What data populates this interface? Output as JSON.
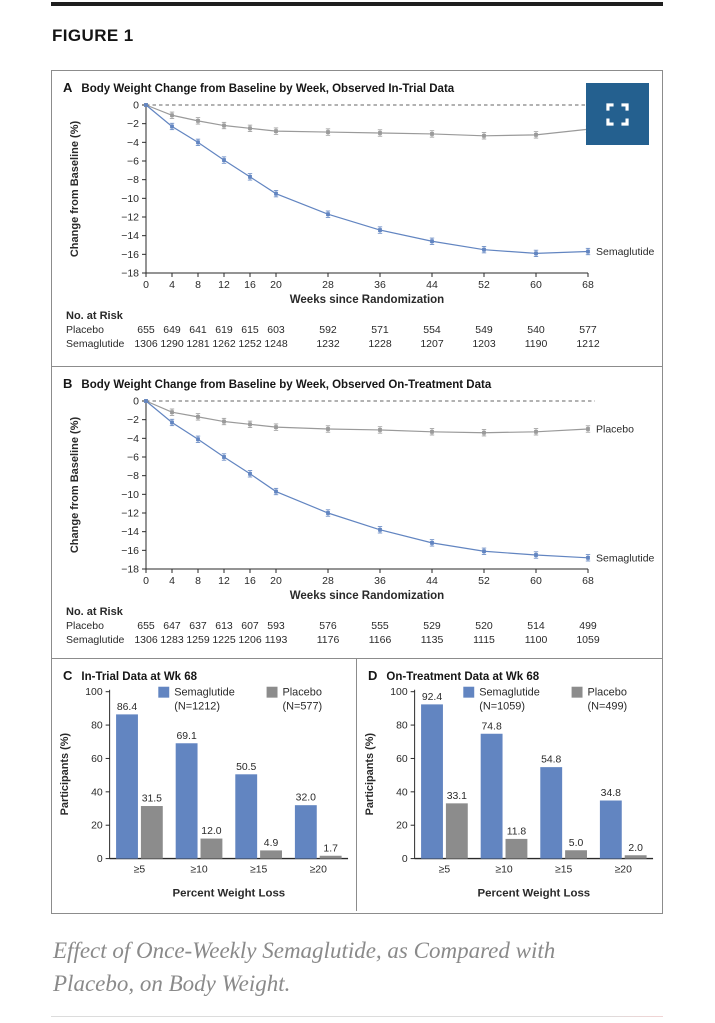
{
  "figure": {
    "label": "FIGURE 1"
  },
  "caption": "Effect of Once-Weekly Semaglutide, as Compared with Placebo, on Body Weight.",
  "expand_button": {
    "icon": "expand-icon"
  },
  "colors": {
    "semaglutide_blue": "#6285c1",
    "placebo_line_gray": "#9a9a9a",
    "placebo_bar_gray": "#8c8c8c",
    "expand_button_bg": "#24608f",
    "top_rule": "#1e1e1e",
    "panel_border": "#8c8c8c"
  },
  "chart_data": [
    {
      "id": "A",
      "type": "line",
      "panel_label": "A",
      "title": "Body Weight Change from Baseline by Week, Observed In-Trial Data",
      "xlabel": "Weeks since Randomization",
      "ylabel": "Change from Baseline (%)",
      "x": [
        0,
        4,
        8,
        12,
        16,
        20,
        28,
        36,
        44,
        52,
        60,
        68
      ],
      "xlim": [
        0,
        68
      ],
      "ylim": [
        -18,
        0
      ],
      "ytick_step": 2,
      "zero_line_dashed": true,
      "series": [
        {
          "name": "Placebo",
          "color": "#9a9a9a",
          "values": [
            0,
            -1.1,
            -1.7,
            -2.2,
            -2.5,
            -2.8,
            -2.9,
            -3.0,
            -3.1,
            -3.3,
            -3.2,
            -2.6
          ],
          "end_label": ""
        },
        {
          "name": "Semaglutide",
          "color": "#6285c1",
          "values": [
            0,
            -2.3,
            -4.0,
            -5.9,
            -7.7,
            -9.5,
            -11.7,
            -13.4,
            -14.6,
            -15.5,
            -15.9,
            -15.7
          ],
          "end_label": "Semaglutide"
        }
      ],
      "no_at_risk": {
        "header": "No. at Risk",
        "rows": [
          {
            "label": "Placebo",
            "values": [
              655,
              649,
              641,
              619,
              615,
              603,
              592,
              571,
              554,
              549,
              540,
              577
            ]
          },
          {
            "label": "Semaglutide",
            "values": [
              1306,
              1290,
              1281,
              1262,
              1252,
              1248,
              1232,
              1228,
              1207,
              1203,
              1190,
              1212
            ]
          }
        ]
      }
    },
    {
      "id": "B",
      "type": "line",
      "panel_label": "B",
      "title": "Body Weight Change from Baseline by Week, Observed On-Treatment Data",
      "xlabel": "Weeks since Randomization",
      "ylabel": "Change from Baseline (%)",
      "x": [
        0,
        4,
        8,
        12,
        16,
        20,
        28,
        36,
        44,
        52,
        60,
        68
      ],
      "xlim": [
        0,
        68
      ],
      "ylim": [
        -18,
        0
      ],
      "ytick_step": 2,
      "zero_line_dashed": true,
      "series": [
        {
          "name": "Placebo",
          "color": "#9a9a9a",
          "values": [
            0,
            -1.2,
            -1.7,
            -2.2,
            -2.5,
            -2.8,
            -3.0,
            -3.1,
            -3.3,
            -3.4,
            -3.3,
            -3.0
          ],
          "end_label": "Placebo"
        },
        {
          "name": "Semaglutide",
          "color": "#6285c1",
          "values": [
            0,
            -2.3,
            -4.1,
            -6.0,
            -7.8,
            -9.7,
            -12.0,
            -13.8,
            -15.2,
            -16.1,
            -16.5,
            -16.8
          ],
          "end_label": "Semaglutide"
        }
      ],
      "no_at_risk": {
        "header": "No. at Risk",
        "rows": [
          {
            "label": "Placebo",
            "values": [
              655,
              647,
              637,
              613,
              607,
              593,
              576,
              555,
              529,
              520,
              514,
              499
            ]
          },
          {
            "label": "Semaglutide",
            "values": [
              1306,
              1283,
              1259,
              1225,
              1206,
              1193,
              1176,
              1166,
              1135,
              1115,
              1100,
              1059
            ]
          }
        ]
      }
    },
    {
      "id": "C",
      "type": "bar",
      "panel_label": "C",
      "title": "In-Trial Data at Wk 68",
      "xlabel": "Percent Weight Loss",
      "ylabel": "Participants (%)",
      "ylim": [
        0,
        100
      ],
      "ytick_step": 20,
      "categories": [
        "≥5",
        "≥10",
        "≥15",
        "≥20"
      ],
      "series": [
        {
          "name": "Semaglutide",
          "n_label": "(N=1212)",
          "color": "#6285c1",
          "values": [
            86.4,
            69.1,
            50.5,
            32.0
          ],
          "value_labels": [
            "86.4",
            "69.1",
            "50.5",
            "32.0"
          ]
        },
        {
          "name": "Placebo",
          "n_label": "(N=577)",
          "color": "#8c8c8c",
          "values": [
            31.5,
            12.0,
            4.9,
            1.7
          ],
          "value_labels": [
            "31.5",
            "12.0",
            "4.9",
            "1.7"
          ]
        }
      ],
      "legend_position": "top"
    },
    {
      "id": "D",
      "type": "bar",
      "panel_label": "D",
      "title": "On-Treatment Data at Wk 68",
      "xlabel": "Percent Weight Loss",
      "ylabel": "Participants (%)",
      "ylim": [
        0,
        100
      ],
      "ytick_step": 20,
      "categories": [
        "≥5",
        "≥10",
        "≥15",
        "≥20"
      ],
      "series": [
        {
          "name": "Semaglutide",
          "n_label": "(N=1059)",
          "color": "#6285c1",
          "values": [
            92.4,
            74.8,
            54.8,
            34.8
          ],
          "value_labels": [
            "92.4",
            "74.8",
            "54.8",
            "34.8"
          ]
        },
        {
          "name": "Placebo",
          "n_label": "(N=499)",
          "color": "#8c8c8c",
          "values": [
            33.1,
            11.8,
            5.0,
            2.0
          ],
          "value_labels": [
            "33.1",
            "11.8",
            "5.0",
            "2.0"
          ]
        }
      ],
      "legend_position": "top"
    }
  ]
}
